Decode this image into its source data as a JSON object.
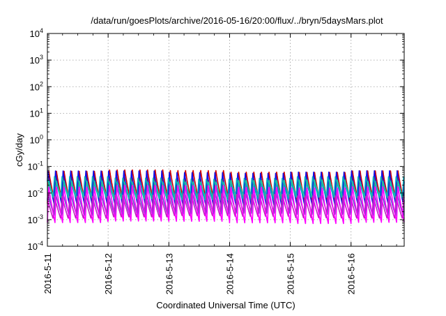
{
  "chart_data": {
    "type": "line",
    "title": "/data/run/goesPlots/archive/2016-05-16/20:00/flux/../bryn/5daysMars.plot",
    "xlabel": "Coordinated Universal Time (UTC)",
    "ylabel": "cGy/day",
    "y_scale": "log",
    "ylim": [
      0.0001,
      10000
    ],
    "xlim": [
      "2016-05-11 00:00",
      "2016-05-16 21:00"
    ],
    "grid": true,
    "grid_style": "dotted",
    "x_tick_labels": [
      "2016-5-11",
      "2016-5-12",
      "2016-5-13",
      "2016-5-14",
      "2016-5-15",
      "2016-5-16"
    ],
    "y_tick_labels": [
      {
        "base": "10",
        "exp": "-4"
      },
      {
        "base": "10",
        "exp": "-3"
      },
      {
        "base": "10",
        "exp": "-2"
      },
      {
        "base": "10",
        "exp": "-1"
      },
      {
        "base": "10",
        "exp": "0"
      },
      {
        "base": "10",
        "exp": "1"
      },
      {
        "base": "10",
        "exp": "2"
      },
      {
        "base": "10",
        "exp": "3"
      },
      {
        "base": "10",
        "exp": "4"
      }
    ],
    "oscillation_period_hours": 3,
    "series": [
      {
        "color": "#d40000",
        "peak": 0.075,
        "trough": 0.004
      },
      {
        "color": "#1010e8",
        "peak": 0.065,
        "trough": 0.0035
      },
      {
        "color": "#00a8c0",
        "peak": 0.04,
        "trough": 0.006
      },
      {
        "color": "#20c0a0",
        "peak": 0.03,
        "trough": 0.005
      },
      {
        "color": "#6a4ad0",
        "peak": 0.012,
        "trough": 0.0015
      },
      {
        "color": "#c020c0",
        "peak": 0.009,
        "trough": 0.0012
      },
      {
        "color": "#ff00ff",
        "peak": 0.02,
        "trough": 0.0008
      }
    ]
  }
}
